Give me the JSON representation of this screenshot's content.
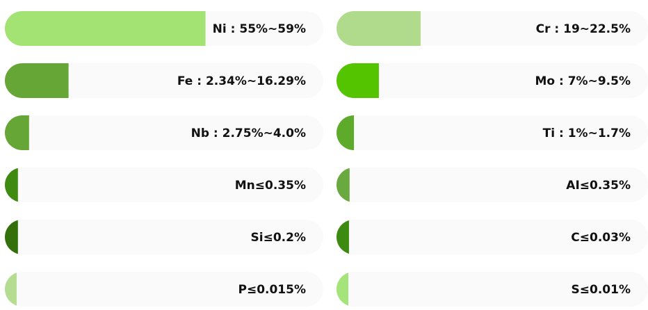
{
  "columns": [
    [
      {
        "label": "Ni : 55%~59%",
        "fill": 63,
        "color": "#a3e374"
      },
      {
        "label": "Fe : 2.34%~16.29%",
        "fill": 20,
        "color": "#65a637"
      },
      {
        "label": "Nb : 2.75%~4.0%",
        "fill": 7.6,
        "color": "#65a637"
      },
      {
        "label": "Mn≤0.35%",
        "fill": 4.1,
        "color": "#3f8a10"
      },
      {
        "label": "Si≤0.2%",
        "fill": 4.1,
        "color": "#336f0b"
      },
      {
        "label": "P≤0.015%",
        "fill": 3.7,
        "color": "#b4dd92"
      }
    ],
    [
      {
        "label": "Cr : 19~22.5%",
        "fill": 27,
        "color": "#b1db8c"
      },
      {
        "label": "Mo : 7%~9.5%",
        "fill": 13.6,
        "color": "#54c400"
      },
      {
        "label": "Ti : 1%~1.7%",
        "fill": 5.6,
        "color": "#5eaa2a"
      },
      {
        "label": "AI≤0.35%",
        "fill": 4.2,
        "color": "#6aa93f"
      },
      {
        "label": "C≤0.03%",
        "fill": 4,
        "color": "#3d8a10"
      },
      {
        "label": "S≤0.01%",
        "fill": 3.8,
        "color": "#a5e47a"
      }
    ]
  ]
}
